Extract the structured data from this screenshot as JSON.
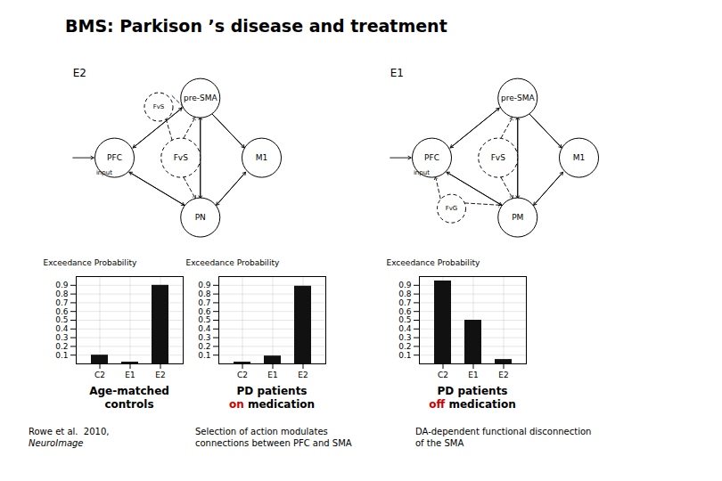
{
  "title": "BMS: Parkison ’s disease and treatment",
  "chart_data": [
    {
      "type": "bar",
      "title": "Age-matched",
      "subtitle": [
        {
          "text": "controls"
        }
      ],
      "categories": [
        "C2",
        "E1",
        "E2"
      ],
      "values": [
        0.1,
        0.02,
        0.9
      ],
      "color": "#111111",
      "ylabel": "Exceedance Probability",
      "ylim": [
        0,
        1.0
      ],
      "yticks": [
        0.1,
        0.2,
        0.3,
        0.4,
        0.5,
        0.6,
        0.7,
        0.8,
        0.9
      ],
      "grid": true
    },
    {
      "type": "bar",
      "title": "PD patients",
      "subtitle": [
        {
          "text": "on",
          "color": "#cc0000"
        },
        {
          "text": " medication"
        }
      ],
      "categories": [
        "C2",
        "E1",
        "E2"
      ],
      "values": [
        0.02,
        0.09,
        0.89
      ],
      "color": "#111111",
      "ylabel": "Exceedance Probability",
      "ylim": [
        0,
        1.0
      ],
      "yticks": [
        0.1,
        0.2,
        0.3,
        0.4,
        0.5,
        0.6,
        0.7,
        0.8,
        0.9
      ],
      "grid": true
    },
    {
      "type": "bar",
      "title": "PD patients",
      "subtitle": [
        {
          "text": "off",
          "color": "#cc0000"
        },
        {
          "text": " medication"
        }
      ],
      "categories": [
        "C2",
        "E1",
        "E2"
      ],
      "values": [
        0.95,
        0.5,
        0.05
      ],
      "color": "#111111",
      "ylabel": "Exceedance Probability",
      "ylim": [
        0,
        1.0
      ],
      "yticks": [
        0.1,
        0.2,
        0.3,
        0.4,
        0.5,
        0.6,
        0.7,
        0.8,
        0.9
      ],
      "grid": true
    }
  ],
  "diagrams": [
    {
      "title": "E2",
      "nodes": [
        "pre-SMA",
        "PFC",
        "FvS",
        "M1",
        "PN",
        "FvS"
      ],
      "annotations": [
        "input"
      ]
    },
    {
      "title": "E1",
      "nodes": [
        "pre-SMA",
        "PFC",
        "FvS",
        "M1",
        "PM",
        "FvG"
      ],
      "annotations": [
        "input"
      ]
    }
  ],
  "annotations": [
    [
      {
        "text": "Rowe et al.  2010,"
      },
      {
        "text": "NeuroImage",
        "style": "italic"
      }
    ],
    [
      {
        "text": "Selection of action modulates\nconnections between PFC and SMA"
      }
    ],
    [
      {
        "text": "DA-dependent functional disconnection\nof the SMA"
      }
    ]
  ]
}
